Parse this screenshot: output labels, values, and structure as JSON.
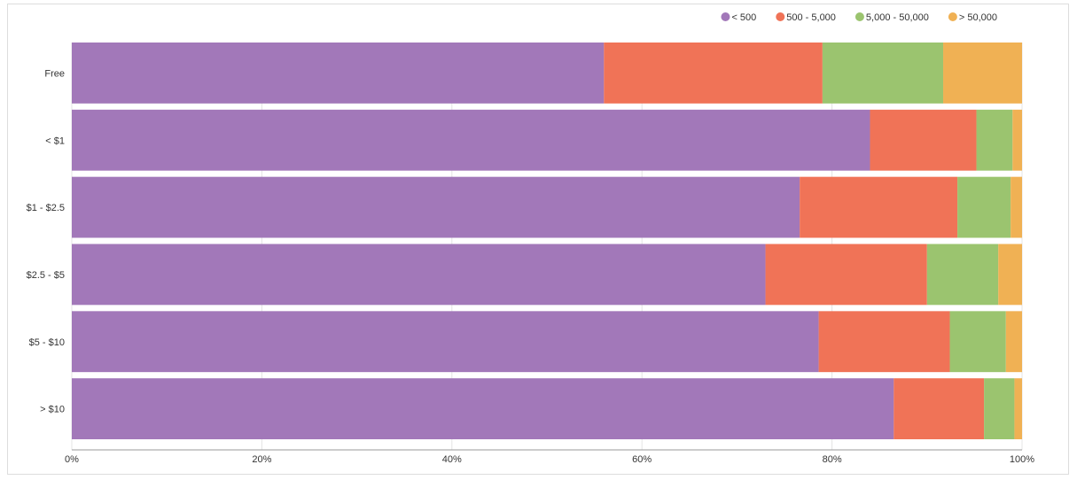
{
  "chart_data": {
    "type": "bar",
    "orientation": "horizontal",
    "stacked": true,
    "normalized": "percent",
    "categories": [
      "Free",
      "< $1",
      "$1 - $2.5",
      "$2.5 - $5",
      "$5 - $10",
      "> $10"
    ],
    "series": [
      {
        "name": "< 500",
        "color": "#a278b9",
        "values": [
          56,
          84,
          76.6,
          73,
          78.6,
          86.5
        ]
      },
      {
        "name": "500 - 5,000",
        "color": "#f07357",
        "values": [
          23,
          11.2,
          16.6,
          17,
          13.8,
          9.5
        ]
      },
      {
        "name": "5,000 - 50,000",
        "color": "#9bc46f",
        "values": [
          12.7,
          3.8,
          5.6,
          7.5,
          5.9,
          3.2
        ]
      },
      {
        "name": "> 50,000",
        "color": "#f0b154",
        "values": [
          8.3,
          1,
          1.2,
          2.5,
          1.7,
          0.8
        ]
      }
    ],
    "x_ticks": [
      "0%",
      "20%",
      "40%",
      "60%",
      "80%",
      "100%"
    ],
    "xlim": [
      0,
      100
    ],
    "legend_position": "top-right",
    "grid": true
  }
}
